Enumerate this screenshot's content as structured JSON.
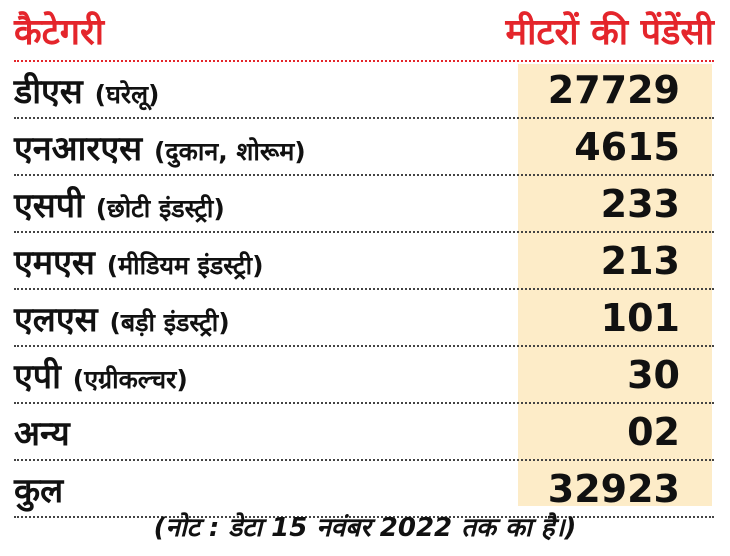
{
  "header": {
    "category": "कैटेगरी",
    "pending": "मीटरों की पेंडेंसी"
  },
  "rows": [
    {
      "name": "डीएस",
      "detail": "(घरेलू)",
      "value": "27729"
    },
    {
      "name": "एनआरएस",
      "detail": "(दुकान, शोरूम)",
      "value": "4615"
    },
    {
      "name": "एसपी",
      "detail": "(छोटी इंडस्ट्री)",
      "value": "233"
    },
    {
      "name": "एमएस",
      "detail": "(मीडियम इंडस्ट्री)",
      "value": "213"
    },
    {
      "name": "एलएस",
      "detail": "(बड़ी इंडस्ट्री)",
      "value": "101"
    },
    {
      "name": "एपी",
      "detail": "(एग्रीकल्चर)",
      "value": "30"
    },
    {
      "name": "अन्य",
      "detail": "",
      "value": "02"
    },
    {
      "name": "कुल",
      "detail": "",
      "value": "32923"
    }
  ],
  "note": "(नोट : डेटा 15 नवंबर 2022 तक का है।)",
  "colors": {
    "header": "#e4252b",
    "highlight": "#fdecc8"
  }
}
